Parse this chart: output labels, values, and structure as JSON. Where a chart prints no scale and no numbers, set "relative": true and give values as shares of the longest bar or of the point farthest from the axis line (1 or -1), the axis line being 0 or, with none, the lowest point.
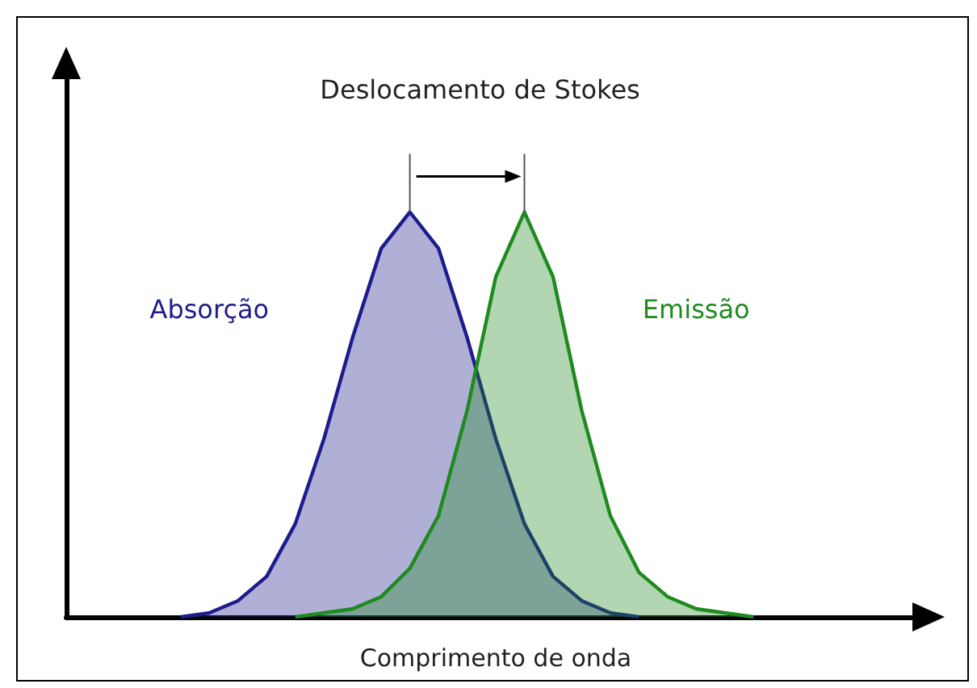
{
  "chart_data": {
    "type": "area",
    "relative": true,
    "xlabel": "Comprimento de onda",
    "annotations": [
      "Deslocamento de Stokes"
    ],
    "categories": [
      null,
      null,
      null,
      null,
      null,
      null,
      null,
      null,
      null,
      null,
      null,
      null,
      null,
      null,
      null,
      null,
      null,
      null,
      null,
      null,
      null,
      null,
      null,
      null,
      null,
      null,
      null,
      null,
      null,
      null,
      null
    ],
    "series": [
      {
        "name": "Absorção",
        "color": "#1c1c8c",
        "values": [
          null,
          null,
          null,
          null,
          0,
          0.01,
          0.04,
          0.1,
          0.23,
          0.44,
          0.69,
          0.91,
          1,
          0.91,
          0.69,
          0.44,
          0.23,
          0.1,
          0.04,
          0.01,
          0,
          null,
          null,
          null,
          null,
          null,
          null,
          null,
          null,
          null,
          null
        ]
      },
      {
        "name": "Emissão",
        "color": "#1f8a1f",
        "values": [
          null,
          null,
          null,
          null,
          null,
          null,
          null,
          null,
          0,
          0.01,
          0.02,
          0.05,
          0.12,
          0.25,
          0.51,
          0.84,
          1,
          0.84,
          0.51,
          0.25,
          0.11,
          0.05,
          0.02,
          0.01,
          0,
          null,
          null,
          null,
          null,
          null,
          null
        ]
      }
    ],
    "marker": "none",
    "line_style": "solid"
  }
}
